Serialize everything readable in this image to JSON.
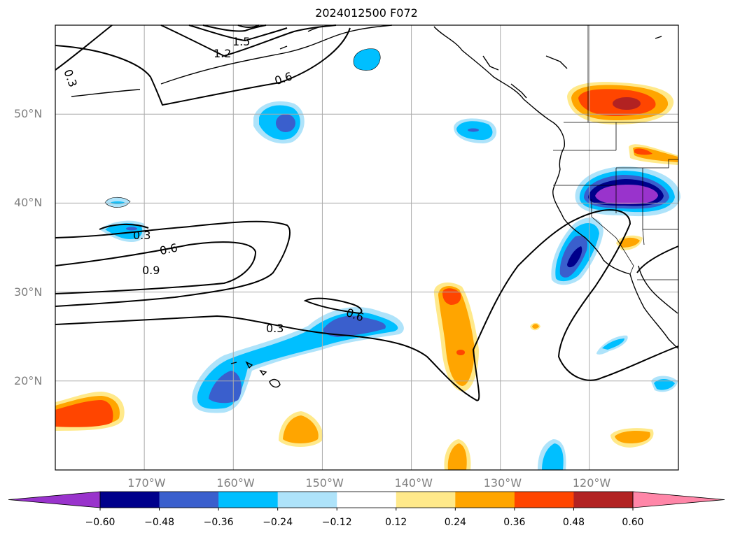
{
  "title": "2024012500 F072",
  "lat_labels": [
    {
      "text": "50°N",
      "lat": 50
    },
    {
      "text": "40°N",
      "lat": 40
    },
    {
      "text": "30°N",
      "lat": 30
    },
    {
      "text": "20°N",
      "lat": 20
    }
  ],
  "lon_labels": [
    {
      "text": "170°W",
      "lon": -170
    },
    {
      "text": "160°W",
      "lon": -160
    },
    {
      "text": "150°W",
      "lon": -150
    },
    {
      "text": "140°W",
      "lon": -140
    },
    {
      "text": "130°W",
      "lon": -130
    },
    {
      "text": "120°W",
      "lon": -120
    }
  ],
  "map_extent": {
    "lon_min": -180,
    "lon_max": -110,
    "lat_min": 10,
    "lat_max": 60
  },
  "contour_labels": [
    "1.5",
    "1.2",
    "0.6",
    "0.3",
    "0.3",
    "0.6",
    "0.9",
    "0.3",
    "0.6"
  ],
  "colorbar": {
    "ticks": [
      "−0.60",
      "−0.48",
      "−0.36",
      "−0.24",
      "−0.12",
      "0.12",
      "0.24",
      "0.36",
      "0.48",
      "0.60"
    ],
    "colors": [
      "#9933cc",
      "#00008b",
      "#3a5fcd",
      "#00bfff",
      "#aee3fa",
      "#ffffff",
      "#ffe98a",
      "#ffa500",
      "#ff4500",
      "#b22222",
      "#ff86a8"
    ]
  }
}
